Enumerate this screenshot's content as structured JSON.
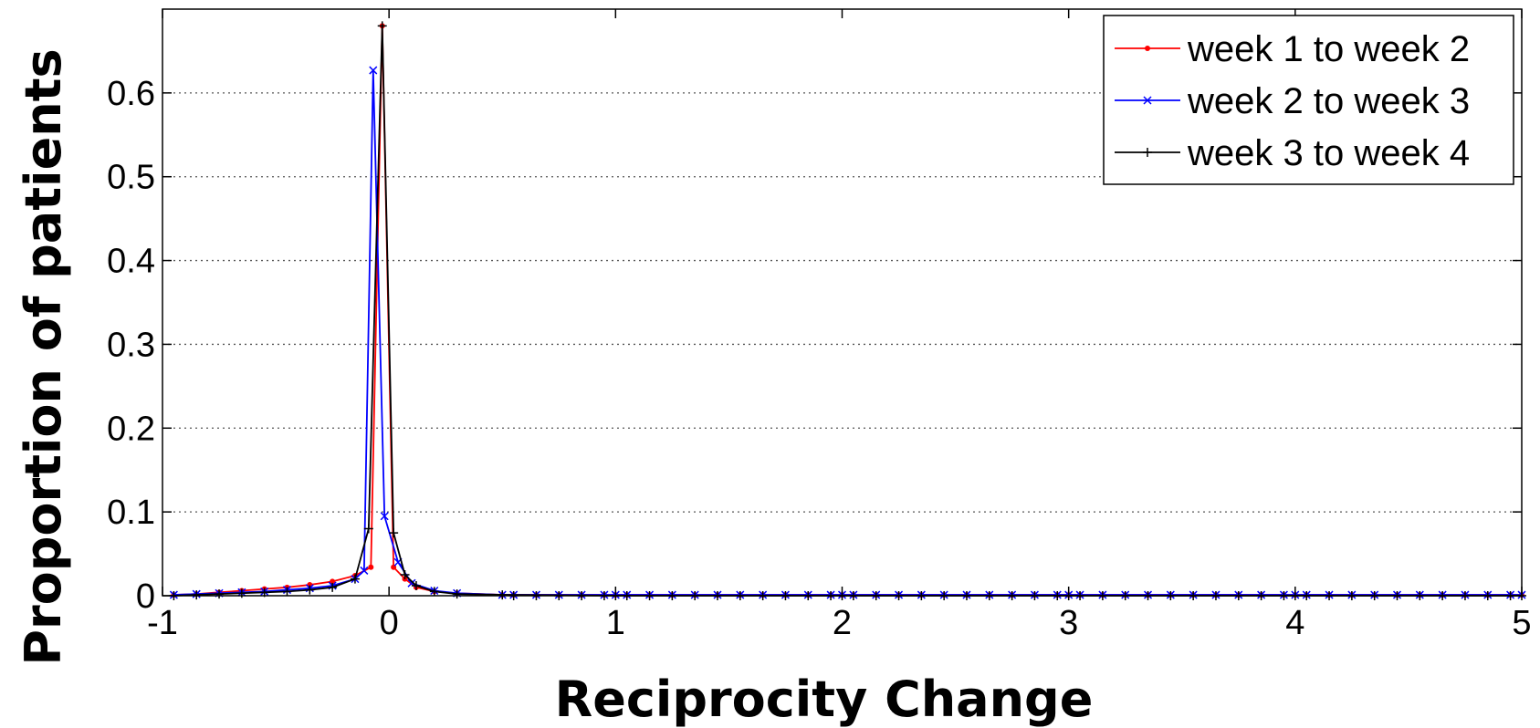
{
  "chart_data": {
    "type": "line",
    "xlabel": "Reciprocity Change",
    "ylabel": "Proportion of patients",
    "xlim": [
      -1,
      5
    ],
    "ylim": [
      0,
      0.7
    ],
    "x_ticks": [
      -1,
      0,
      1,
      2,
      3,
      4,
      5
    ],
    "x_tick_labels": [
      "-1",
      "0",
      "1",
      "2",
      "3",
      "4",
      "5"
    ],
    "y_ticks": [
      0,
      0.1,
      0.2,
      0.3,
      0.4,
      0.5,
      0.6
    ],
    "y_tick_labels": [
      "0",
      "0.1",
      "0.2",
      "0.3",
      "0.4",
      "0.5",
      "0.6"
    ],
    "grid": "horizontal-dotted",
    "legend_position": "top-right",
    "series": [
      {
        "name": "week 1 to week 2",
        "color": "#ff0000",
        "marker": "dot",
        "peak": {
          "x": -0.03,
          "y": 0.68
        },
        "x": [
          -0.95,
          -0.85,
          -0.75,
          -0.65,
          -0.55,
          -0.45,
          -0.35,
          -0.25,
          -0.15,
          -0.08,
          -0.03,
          0.02,
          0.07,
          0.12,
          0.2,
          0.3,
          0.5,
          1.0,
          2.0,
          3.0,
          4.0,
          5.0
        ],
        "y": [
          0.001,
          0.002,
          0.004,
          0.006,
          0.008,
          0.01,
          0.013,
          0.017,
          0.024,
          0.034,
          0.68,
          0.034,
          0.02,
          0.01,
          0.005,
          0.003,
          0.001,
          0.001,
          0.001,
          0.001,
          0.001,
          0.001
        ]
      },
      {
        "name": "week 2 to week 3",
        "color": "#0000ff",
        "marker": "x",
        "peak": {
          "x": -0.07,
          "y": 0.63
        },
        "x": [
          -0.95,
          -0.85,
          -0.75,
          -0.65,
          -0.55,
          -0.45,
          -0.35,
          -0.25,
          -0.15,
          -0.11,
          -0.07,
          -0.02,
          0.04,
          0.1,
          0.2,
          0.3,
          0.5,
          1.0,
          2.0,
          3.0,
          4.0,
          5.0
        ],
        "y": [
          0.001,
          0.002,
          0.003,
          0.004,
          0.005,
          0.007,
          0.009,
          0.012,
          0.02,
          0.03,
          0.627,
          0.095,
          0.04,
          0.015,
          0.006,
          0.003,
          0.001,
          0.001,
          0.001,
          0.001,
          0.001,
          0.001
        ]
      },
      {
        "name": "week 3 to week 4",
        "color": "#000000",
        "marker": "plus",
        "peak": {
          "x": -0.03,
          "y": 0.68
        },
        "x": [
          -0.95,
          -0.85,
          -0.75,
          -0.65,
          -0.55,
          -0.45,
          -0.35,
          -0.25,
          -0.15,
          -0.09,
          -0.03,
          0.02,
          0.07,
          0.12,
          0.2,
          0.3,
          0.5,
          1.0,
          2.0,
          3.0,
          4.0,
          5.0
        ],
        "y": [
          0.0,
          0.001,
          0.002,
          0.003,
          0.004,
          0.005,
          0.007,
          0.01,
          0.02,
          0.08,
          0.68,
          0.075,
          0.025,
          0.012,
          0.005,
          0.002,
          0.001,
          0.0,
          0.0,
          0.0,
          0.0,
          0.0
        ]
      }
    ]
  }
}
